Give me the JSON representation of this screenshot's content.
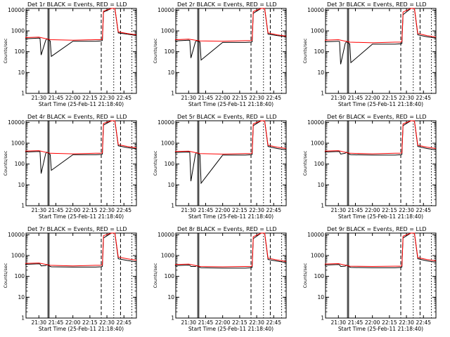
{
  "figure": {
    "bg_color": "#ffffff",
    "axis_color": "#000000",
    "events_color": "#000000",
    "lld_color": "#ff0000",
    "scale": "log",
    "ylim": [
      1,
      12000
    ],
    "yticks": [
      1,
      10,
      100,
      1000,
      10000
    ],
    "ytick_labels": [
      "1",
      "10",
      "100",
      "1000",
      "10000"
    ],
    "xtick_labels": [
      "21:30",
      "21:45",
      "22:00",
      "22:15",
      "22:30",
      "22:45"
    ],
    "xlabel": "Start Time (25-Feb-11 21:18:40)",
    "ylabel": "Counts/sec"
  },
  "chart_data": [
    {
      "type": "line",
      "title": "Det 1r BLACK = Events, RED = LLD",
      "x_range": [
        "21:18:40",
        "22:56:00"
      ],
      "markers": {
        "solid": [
          "21:38",
          "21:39"
        ],
        "dashed": [
          "22:25",
          "22:42"
        ],
        "dotted": [
          "22:36",
          "22:52"
        ]
      },
      "series": [
        {
          "name": "Events",
          "x": [
            "21:18",
            "21:30",
            "21:31",
            "21:32",
            "21:36",
            "21:37",
            "21:40",
            "21:41",
            "22:00",
            "22:20",
            "22:25",
            "22:26",
            "22:27",
            "22:34",
            "22:35",
            "22:37",
            "22:40",
            "22:48",
            "22:56"
          ],
          "y": [
            420,
            450,
            440,
            70,
            350,
            420,
            330,
            60,
            320,
            320,
            330,
            350,
            8000,
            12000,
            12000,
            12000,
            800,
            700,
            600
          ]
        },
        {
          "name": "LLD",
          "x": [
            "21:18",
            "21:30",
            "21:40",
            "22:00",
            "22:20",
            "22:25",
            "22:26",
            "22:27",
            "22:34",
            "22:35",
            "22:37",
            "22:40",
            "22:48",
            "22:56"
          ],
          "y": [
            480,
            500,
            380,
            360,
            380,
            380,
            400,
            9000,
            12000,
            12000,
            12000,
            900,
            750,
            650
          ]
        }
      ]
    },
    {
      "type": "line",
      "title": "Det 2r BLACK = Events, RED = LLD",
      "x_range": [
        "21:18:40",
        "22:56:00"
      ],
      "markers": {
        "solid": [
          "21:38",
          "21:39"
        ],
        "dashed": [
          "22:25",
          "22:42"
        ],
        "dotted": [
          "22:36",
          "22:52"
        ]
      },
      "series": [
        {
          "name": "Events",
          "x": [
            "21:18",
            "21:30",
            "21:31",
            "21:32",
            "21:36",
            "21:37",
            "21:40",
            "21:41",
            "22:00",
            "22:20",
            "22:25",
            "22:26",
            "22:27",
            "22:34",
            "22:35",
            "22:37",
            "22:40",
            "22:48",
            "22:56"
          ],
          "y": [
            330,
            360,
            350,
            50,
            300,
            340,
            290,
            40,
            280,
            280,
            290,
            300,
            7000,
            12000,
            12000,
            12000,
            700,
            600,
            520
          ]
        },
        {
          "name": "LLD",
          "x": [
            "21:18",
            "21:30",
            "21:40",
            "22:00",
            "22:20",
            "22:25",
            "22:26",
            "22:27",
            "22:34",
            "22:35",
            "22:37",
            "22:40",
            "22:48",
            "22:56"
          ],
          "y": [
            380,
            400,
            330,
            320,
            340,
            340,
            360,
            8500,
            12000,
            12000,
            12000,
            800,
            650,
            560
          ]
        }
      ]
    },
    {
      "type": "line",
      "title": "Det 3r BLACK = Events, RED = LLD",
      "x_range": [
        "21:18:40",
        "22:56:00"
      ],
      "markers": {
        "solid": [
          "21:38",
          "21:39"
        ],
        "dashed": [
          "22:25",
          "22:42"
        ],
        "dotted": [
          "22:36",
          "22:52"
        ]
      },
      "series": [
        {
          "name": "Events",
          "x": [
            "21:18",
            "21:30",
            "21:31",
            "21:32",
            "21:36",
            "21:37",
            "21:40",
            "21:41",
            "22:00",
            "22:20",
            "22:25",
            "22:26",
            "22:27",
            "22:34",
            "22:35",
            "22:37",
            "22:40",
            "22:48",
            "22:56"
          ],
          "y": [
            300,
            320,
            310,
            25,
            250,
            300,
            240,
            30,
            230,
            230,
            240,
            250,
            6000,
            12000,
            12000,
            12000,
            650,
            520,
            450
          ]
        },
        {
          "name": "LLD",
          "x": [
            "21:18",
            "21:30",
            "21:40",
            "22:00",
            "22:20",
            "22:25",
            "22:26",
            "22:27",
            "22:34",
            "22:35",
            "22:37",
            "22:40",
            "22:48",
            "22:56"
          ],
          "y": [
            360,
            380,
            290,
            270,
            290,
            290,
            310,
            8000,
            12000,
            12000,
            12000,
            750,
            600,
            500
          ]
        }
      ]
    },
    {
      "type": "line",
      "title": "Det 4r BLACK = Events, RED = LLD",
      "x_range": [
        "21:18:40",
        "22:56:00"
      ],
      "markers": {
        "solid": [
          "21:38",
          "21:39"
        ],
        "dashed": [
          "22:25",
          "22:42"
        ],
        "dotted": [
          "22:36",
          "22:52"
        ]
      },
      "series": [
        {
          "name": "Events",
          "x": [
            "21:18",
            "21:30",
            "21:31",
            "21:32",
            "21:36",
            "21:37",
            "21:40",
            "21:41",
            "22:00",
            "22:20",
            "22:25",
            "22:26",
            "22:27",
            "22:34",
            "22:35",
            "22:37",
            "22:40",
            "22:48",
            "22:56"
          ],
          "y": [
            380,
            400,
            390,
            35,
            320,
            370,
            290,
            50,
            280,
            280,
            290,
            300,
            7500,
            12000,
            12000,
            12000,
            750,
            620,
            540
          ]
        },
        {
          "name": "LLD",
          "x": [
            "21:18",
            "21:30",
            "21:40",
            "22:00",
            "22:20",
            "22:25",
            "22:26",
            "22:27",
            "22:34",
            "22:35",
            "22:37",
            "22:40",
            "22:48",
            "22:56"
          ],
          "y": [
            420,
            440,
            330,
            310,
            330,
            330,
            350,
            9000,
            12000,
            12000,
            12000,
            850,
            700,
            600
          ]
        }
      ]
    },
    {
      "type": "line",
      "title": "Det 5r BLACK = Events, RED = LLD",
      "x_range": [
        "21:18:40",
        "22:56:00"
      ],
      "markers": {
        "solid": [
          "21:38",
          "21:39"
        ],
        "dashed": [
          "22:25",
          "22:42"
        ],
        "dotted": [
          "22:36",
          "22:52"
        ]
      },
      "series": [
        {
          "name": "Events",
          "x": [
            "21:18",
            "21:30",
            "21:31",
            "21:32",
            "21:36",
            "21:37",
            "21:40",
            "21:41",
            "22:00",
            "22:20",
            "22:25",
            "22:26",
            "22:27",
            "22:34",
            "22:35",
            "22:37",
            "22:40",
            "22:48",
            "22:56"
          ],
          "y": [
            360,
            380,
            370,
            15,
            300,
            350,
            280,
            12,
            270,
            270,
            280,
            290,
            7000,
            12000,
            12000,
            12000,
            700,
            560,
            480
          ]
        },
        {
          "name": "LLD",
          "x": [
            "21:18",
            "21:30",
            "21:40",
            "22:00",
            "22:20",
            "22:25",
            "22:26",
            "22:27",
            "22:34",
            "22:35",
            "22:37",
            "22:40",
            "22:48",
            "22:56"
          ],
          "y": [
            400,
            420,
            320,
            300,
            320,
            320,
            340,
            8500,
            12000,
            12000,
            12000,
            800,
            650,
            560
          ]
        }
      ]
    },
    {
      "type": "line",
      "title": "Det 6r BLACK = Events, RED = LLD",
      "x_range": [
        "21:18:40",
        "22:56:00"
      ],
      "markers": {
        "solid": [
          "21:38",
          "21:39"
        ],
        "dashed": [
          "22:25",
          "22:42"
        ],
        "dotted": [
          "22:36",
          "22:52"
        ]
      },
      "series": [
        {
          "name": "Events",
          "x": [
            "21:18",
            "21:30",
            "21:31",
            "21:32",
            "21:36",
            "21:37",
            "21:40",
            "21:41",
            "22:00",
            "22:20",
            "22:25",
            "22:26",
            "22:27",
            "22:34",
            "22:35",
            "22:37",
            "22:40",
            "22:48",
            "22:56"
          ],
          "y": [
            380,
            400,
            390,
            300,
            330,
            370,
            290,
            280,
            270,
            270,
            280,
            290,
            7000,
            12000,
            12000,
            12000,
            700,
            560,
            480
          ]
        },
        {
          "name": "LLD",
          "x": [
            "21:18",
            "21:30",
            "21:40",
            "22:00",
            "22:20",
            "22:25",
            "22:26",
            "22:27",
            "22:34",
            "22:35",
            "22:37",
            "22:40",
            "22:48",
            "22:56"
          ],
          "y": [
            420,
            440,
            330,
            310,
            330,
            330,
            350,
            8500,
            12000,
            12000,
            12000,
            800,
            650,
            560
          ]
        }
      ]
    },
    {
      "type": "line",
      "title": "Det 7r BLACK = Events, RED = LLD",
      "x_range": [
        "21:18:40",
        "22:56:00"
      ],
      "markers": {
        "solid": [
          "21:38",
          "21:39"
        ],
        "dashed": [
          "22:25",
          "22:42"
        ],
        "dotted": [
          "22:36",
          "22:52"
        ]
      },
      "series": [
        {
          "name": "Events",
          "x": [
            "21:18",
            "21:30",
            "21:31",
            "21:32",
            "21:36",
            "21:37",
            "21:40",
            "21:41",
            "22:00",
            "22:20",
            "22:25",
            "22:26",
            "22:27",
            "22:34",
            "22:35",
            "22:37",
            "22:40",
            "22:48",
            "22:56"
          ],
          "y": [
            380,
            400,
            390,
            320,
            330,
            370,
            300,
            290,
            280,
            280,
            290,
            300,
            7000,
            12000,
            12000,
            12000,
            700,
            580,
            500
          ]
        },
        {
          "name": "LLD",
          "x": [
            "21:18",
            "21:30",
            "21:40",
            "22:00",
            "22:20",
            "22:25",
            "22:26",
            "22:27",
            "22:34",
            "22:35",
            "22:37",
            "22:40",
            "22:48",
            "22:56"
          ],
          "y": [
            420,
            440,
            340,
            320,
            340,
            340,
            360,
            9000,
            12000,
            12000,
            12000,
            850,
            700,
            600
          ]
        }
      ]
    },
    {
      "type": "line",
      "title": "Det 8r BLACK = Events, RED = LLD",
      "x_range": [
        "21:18:40",
        "22:56:00"
      ],
      "markers": {
        "solid": [
          "21:38",
          "21:39"
        ],
        "dashed": [
          "22:25",
          "22:42"
        ],
        "dotted": [
          "22:36",
          "22:52"
        ]
      },
      "series": [
        {
          "name": "Events",
          "x": [
            "21:18",
            "21:30",
            "21:31",
            "21:32",
            "21:36",
            "21:37",
            "21:40",
            "21:41",
            "22:00",
            "22:20",
            "22:25",
            "22:26",
            "22:27",
            "22:34",
            "22:35",
            "22:37",
            "22:40",
            "22:48",
            "22:56"
          ],
          "y": [
            330,
            350,
            340,
            300,
            300,
            330,
            270,
            260,
            250,
            250,
            260,
            270,
            6500,
            12000,
            12000,
            12000,
            650,
            540,
            460
          ]
        },
        {
          "name": "LLD",
          "x": [
            "21:18",
            "21:30",
            "21:40",
            "22:00",
            "22:20",
            "22:25",
            "22:26",
            "22:27",
            "22:34",
            "22:35",
            "22:37",
            "22:40",
            "22:48",
            "22:56"
          ],
          "y": [
            370,
            390,
            300,
            290,
            300,
            300,
            320,
            8000,
            12000,
            12000,
            12000,
            750,
            620,
            520
          ]
        }
      ]
    },
    {
      "type": "line",
      "title": "Det 9r BLACK = Events, RED = LLD",
      "x_range": [
        "21:18:40",
        "22:56:00"
      ],
      "markers": {
        "solid": [
          "21:38",
          "21:39"
        ],
        "dashed": [
          "22:25",
          "22:42"
        ],
        "dotted": [
          "22:36",
          "22:52"
        ]
      },
      "series": [
        {
          "name": "Events",
          "x": [
            "21:18",
            "21:30",
            "21:31",
            "21:32",
            "21:36",
            "21:37",
            "21:40",
            "21:41",
            "22:00",
            "22:20",
            "22:25",
            "22:26",
            "22:27",
            "22:34",
            "22:35",
            "22:37",
            "22:40",
            "22:48",
            "22:56"
          ],
          "y": [
            350,
            370,
            360,
            300,
            310,
            350,
            280,
            270,
            260,
            260,
            270,
            280,
            7000,
            12000,
            12000,
            12000,
            700,
            560,
            480
          ]
        },
        {
          "name": "LLD",
          "x": [
            "21:18",
            "21:30",
            "21:40",
            "22:00",
            "22:20",
            "22:25",
            "22:26",
            "22:27",
            "22:34",
            "22:35",
            "22:37",
            "22:40",
            "22:48",
            "22:56"
          ],
          "y": [
            390,
            410,
            310,
            300,
            310,
            310,
            330,
            8500,
            12000,
            12000,
            12000,
            800,
            650,
            560
          ]
        }
      ]
    }
  ]
}
